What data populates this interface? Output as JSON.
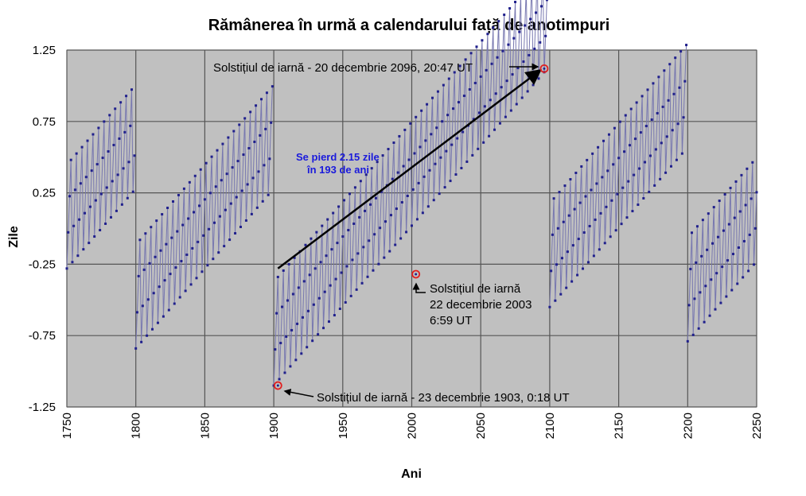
{
  "chart_data": {
    "type": "line",
    "title": "Rămânerea în urmă a calendarului față de anotimpuri",
    "xlabel": "Ani",
    "ylabel": "Zile",
    "xlim": [
      1750,
      2250
    ],
    "ylim": [
      -1.25,
      1.25
    ],
    "x_ticks": [
      "1750",
      "1800",
      "1850",
      "1900",
      "1950",
      "2000",
      "2050",
      "2100",
      "2150",
      "2200",
      "2250"
    ],
    "y_ticks": [
      "1.25",
      "0.75",
      "0.25",
      "-0.25",
      "-0.75",
      "-1.25"
    ],
    "grid": true,
    "plot_background": "#c0c0c0",
    "grid_color": "#555555",
    "series_color": "#20208c",
    "line_color": "#7878b0",
    "marker_color": "#e02020",
    "series": [
      {
        "segments": [
          {
            "start": 1750,
            "end": 1799,
            "y_start": -0.28,
            "slope": 0.0112
          },
          {
            "start": 1800,
            "end": 1899,
            "y_start": -0.84,
            "slope": 0.0112
          },
          {
            "start": 1900,
            "end": 2099,
            "y_start": -1.1,
            "slope": 0.0112
          },
          {
            "start": 2100,
            "end": 2199,
            "y_start": -0.55,
            "slope": 0.0112
          },
          {
            "start": 2200,
            "end": 2250,
            "y_start": -0.79,
            "slope": 0.0112
          }
        ],
        "leap_cycle_offsets": [
          0,
          0.242,
          0.484,
          0.727
        ]
      }
    ],
    "annotations": [
      {
        "text": "Solstițiul de iarnă - 20 decembrie 2096, 20:47 UT",
        "x": 2096,
        "y": 1.12
      },
      {
        "lines": [
          "Solstițiul de iarnă",
          "22 decembrie 2003",
          "6:59 UT"
        ],
        "x": 2003,
        "y": -0.32
      },
      {
        "text": "Solstițiul de iarnă - 23 decembrie 1903, 0:18 UT",
        "x": 1903,
        "y": -1.1
      },
      {
        "lines": [
          "Se pierd 2.15 zile",
          "în 193 de ani"
        ]
      }
    ],
    "trend_arrow": {
      "from": [
        1903,
        -0.28
      ],
      "to": [
        2092,
        1.1
      ]
    }
  }
}
